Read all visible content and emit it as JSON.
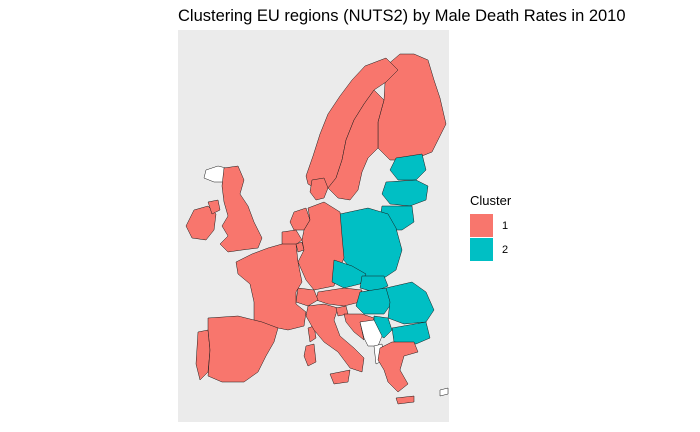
{
  "title": "Clustering EU regions (NUTS2) by Male Death Rates in 2010",
  "panel_background": "#EBEBEB",
  "outline_color": "#1a1a1a",
  "legend": {
    "title": "Cluster",
    "position": "right",
    "items": [
      {
        "label": "1",
        "color": "#F8766D"
      },
      {
        "label": "2",
        "color": "#00BFC4"
      }
    ]
  },
  "regions": [
    {
      "id": "iceland-region",
      "cluster": null
    },
    {
      "id": "ireland-region",
      "cluster": "1"
    },
    {
      "id": "northern-ireland-region",
      "cluster": "1"
    },
    {
      "id": "great-britain-region",
      "cluster": "1"
    },
    {
      "id": "portugal-region",
      "cluster": "1"
    },
    {
      "id": "spain-region",
      "cluster": "1"
    },
    {
      "id": "france-region",
      "cluster": "1"
    },
    {
      "id": "corsica-region",
      "cluster": "1"
    },
    {
      "id": "belgium-region",
      "cluster": "1"
    },
    {
      "id": "netherlands-region",
      "cluster": "1"
    },
    {
      "id": "luxembourg-region",
      "cluster": "1"
    },
    {
      "id": "germany-region",
      "cluster": "1"
    },
    {
      "id": "denmark-region",
      "cluster": "1"
    },
    {
      "id": "norway-region",
      "cluster": "1"
    },
    {
      "id": "sweden-region",
      "cluster": "1"
    },
    {
      "id": "finland-region",
      "cluster": "1"
    },
    {
      "id": "switzerland-region",
      "cluster": "1"
    },
    {
      "id": "austria-region",
      "cluster": "1"
    },
    {
      "id": "italy-region",
      "cluster": "1"
    },
    {
      "id": "sardinia-region",
      "cluster": "1"
    },
    {
      "id": "sicily-region",
      "cluster": "1"
    },
    {
      "id": "slovenia-region",
      "cluster": "1"
    },
    {
      "id": "croatia-region",
      "cluster": "1"
    },
    {
      "id": "greece-region",
      "cluster": "1"
    },
    {
      "id": "crete-region",
      "cluster": "1"
    },
    {
      "id": "cyprus-region",
      "cluster": null
    },
    {
      "id": "estonia-region",
      "cluster": "2"
    },
    {
      "id": "latvia-region",
      "cluster": "2"
    },
    {
      "id": "lithuania-region",
      "cluster": "2"
    },
    {
      "id": "poland-region",
      "cluster": "2"
    },
    {
      "id": "czechia-region",
      "cluster": "2"
    },
    {
      "id": "slovakia-region",
      "cluster": "2"
    },
    {
      "id": "hungary-region",
      "cluster": "2"
    },
    {
      "id": "romania-region",
      "cluster": "2"
    },
    {
      "id": "bulgaria-region",
      "cluster": "2"
    },
    {
      "id": "serbia-region",
      "cluster": "2"
    },
    {
      "id": "balkans-region",
      "cluster": null
    },
    {
      "id": "albania-region",
      "cluster": null
    }
  ]
}
